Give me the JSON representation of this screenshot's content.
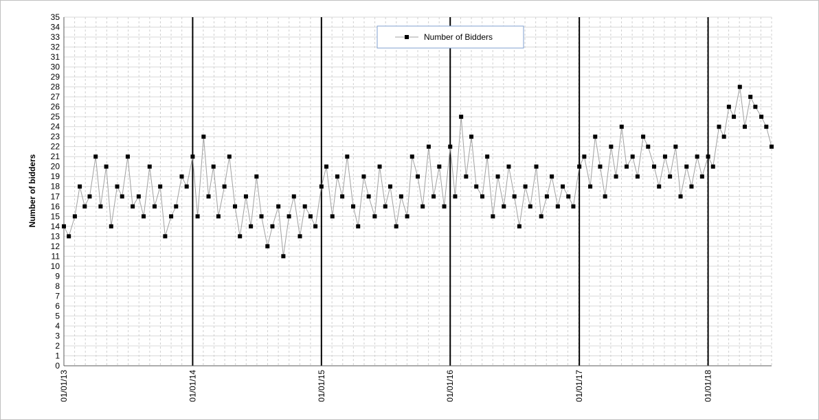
{
  "chart_data": {
    "type": "line",
    "title": "",
    "xlabel": "",
    "ylabel": "Number of bidders",
    "ylim": [
      0,
      35
    ],
    "xlim": [
      "2013-01-01",
      "2018-06-30"
    ],
    "x_tick_labels": [
      "01/01/13",
      "01/01/14",
      "01/01/15",
      "01/01/16",
      "01/01/17",
      "01/01/18"
    ],
    "x_tick_dates": [
      "2013-01-01",
      "2014-01-01",
      "2015-01-01",
      "2016-01-01",
      "2017-01-01",
      "2018-01-01"
    ],
    "y_tick_labels": [
      "0",
      "1",
      "2",
      "3",
      "4",
      "5",
      "6",
      "7",
      "8",
      "9",
      "10",
      "11",
      "12",
      "13",
      "14",
      "15",
      "16",
      "17",
      "18",
      "19",
      "20",
      "21",
      "22",
      "23",
      "24",
      "25",
      "26",
      "27",
      "28",
      "29",
      "30",
      "31",
      "32",
      "33",
      "34",
      "35"
    ],
    "grid": true,
    "year_separator_lines": true,
    "legend_position": "top-center",
    "series": [
      {
        "name": "Number of Bidders",
        "marker_color": "#000000",
        "line_color": "#a0a0a0",
        "x": [
          "2013-01-01",
          "2013-01-15",
          "2013-02-01",
          "2013-02-15",
          "2013-03-01",
          "2013-03-15",
          "2013-04-01",
          "2013-04-15",
          "2013-05-01",
          "2013-05-15",
          "2013-06-01",
          "2013-06-15",
          "2013-07-01",
          "2013-07-15",
          "2013-08-01",
          "2013-08-15",
          "2013-09-01",
          "2013-09-15",
          "2013-10-01",
          "2013-10-15",
          "2013-11-01",
          "2013-11-15",
          "2013-12-01",
          "2013-12-15",
          "2014-01-01",
          "2014-01-15",
          "2014-02-01",
          "2014-02-15",
          "2014-03-01",
          "2014-03-15",
          "2014-04-01",
          "2014-04-15",
          "2014-05-01",
          "2014-05-15",
          "2014-06-01",
          "2014-06-15",
          "2014-07-01",
          "2014-07-15",
          "2014-08-01",
          "2014-08-15",
          "2014-09-01",
          "2014-09-15",
          "2014-10-01",
          "2014-10-15",
          "2014-11-01",
          "2014-11-15",
          "2014-12-01",
          "2014-12-15",
          "2015-01-01",
          "2015-01-15",
          "2015-02-01",
          "2015-02-15",
          "2015-03-01",
          "2015-03-15",
          "2015-04-01",
          "2015-04-15",
          "2015-05-01",
          "2015-05-15",
          "2015-06-01",
          "2015-06-15",
          "2015-07-01",
          "2015-07-15",
          "2015-08-01",
          "2015-08-15",
          "2015-09-01",
          "2015-09-15",
          "2015-10-01",
          "2015-10-15",
          "2015-11-01",
          "2015-11-15",
          "2015-12-01",
          "2015-12-15",
          "2016-01-01",
          "2016-01-15",
          "2016-02-01",
          "2016-02-15",
          "2016-03-01",
          "2016-03-15",
          "2016-04-01",
          "2016-04-15",
          "2016-05-01",
          "2016-05-15",
          "2016-06-01",
          "2016-06-15",
          "2016-07-01",
          "2016-07-15",
          "2016-08-01",
          "2016-08-15",
          "2016-09-01",
          "2016-09-15",
          "2016-10-01",
          "2016-10-15",
          "2016-11-01",
          "2016-11-15",
          "2016-12-01",
          "2016-12-15",
          "2017-01-01",
          "2017-01-15",
          "2017-02-01",
          "2017-02-15",
          "2017-03-01",
          "2017-03-15",
          "2017-04-01",
          "2017-04-15",
          "2017-05-01",
          "2017-05-15",
          "2017-06-01",
          "2017-06-15",
          "2017-07-01",
          "2017-07-15",
          "2017-08-01",
          "2017-08-15",
          "2017-09-01",
          "2017-09-15",
          "2017-10-01",
          "2017-10-15",
          "2017-11-01",
          "2017-11-15",
          "2017-12-01",
          "2017-12-15",
          "2018-01-01",
          "2018-01-15",
          "2018-02-01",
          "2018-02-15",
          "2018-03-01",
          "2018-03-15",
          "2018-04-01",
          "2018-04-15",
          "2018-05-01",
          "2018-05-15",
          "2018-06-01",
          "2018-06-15",
          "2018-06-30"
        ],
        "values": [
          14,
          13,
          15,
          18,
          16,
          17,
          21,
          16,
          20,
          14,
          18,
          17,
          21,
          16,
          17,
          15,
          20,
          16,
          18,
          13,
          15,
          16,
          19,
          18,
          21,
          15,
          23,
          17,
          20,
          15,
          18,
          21,
          16,
          13,
          17,
          14,
          19,
          15,
          12,
          14,
          16,
          11,
          15,
          17,
          13,
          16,
          15,
          14,
          18,
          20,
          15,
          19,
          17,
          21,
          16,
          14,
          19,
          17,
          15,
          20,
          16,
          18,
          14,
          17,
          15,
          21,
          19,
          16,
          22,
          17,
          20,
          16,
          22,
          17,
          25,
          19,
          23,
          18,
          17,
          21,
          15,
          19,
          16,
          20,
          17,
          14,
          18,
          16,
          20,
          15,
          17,
          19,
          16,
          18,
          17,
          16,
          20,
          21,
          18,
          23,
          20,
          17,
          22,
          19,
          24,
          20,
          21,
          19,
          23,
          22,
          20,
          18,
          21,
          19,
          22,
          17,
          20,
          18,
          21,
          19,
          21,
          20,
          24,
          23,
          26,
          25,
          28,
          24,
          27,
          26,
          25,
          24,
          22
        ]
      }
    ]
  }
}
